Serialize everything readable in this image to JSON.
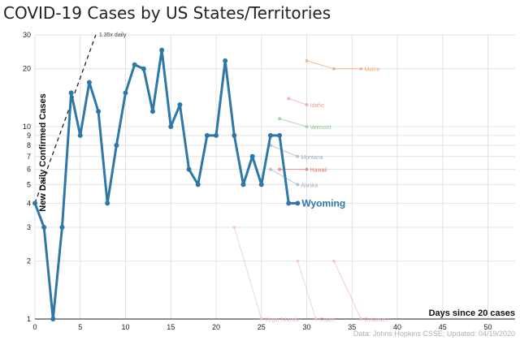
{
  "chart_data": {
    "type": "line",
    "title": "COVID-19 Cases by US States/Territories",
    "xlabel": "Days since 20 cases",
    "ylabel": "New Daily Confirmed Cases",
    "y_scale": "log",
    "xlim": [
      0,
      53
    ],
    "ylim": [
      1,
      30
    ],
    "x_ticks": [
      0,
      5,
      10,
      15,
      20,
      25,
      30,
      35,
      40,
      45,
      50
    ],
    "y_ticks": [
      1,
      2,
      3,
      4,
      5,
      6,
      7,
      8,
      9,
      10,
      20,
      30
    ],
    "grid": true,
    "trend_line": {
      "label": "1.35x daily",
      "start": [
        0,
        4
      ],
      "growth_factor": 1.35,
      "color": "#222222"
    },
    "highlight_series": {
      "name": "Wyoming",
      "color": "#2e78a8",
      "x": [
        0,
        1,
        2,
        3,
        4,
        5,
        6,
        7,
        8,
        9,
        10,
        11,
        12,
        13,
        14,
        15,
        16,
        17,
        18,
        19,
        20,
        21,
        22,
        23,
        24,
        25,
        26,
        27,
        28,
        29
      ],
      "y": [
        4,
        3,
        1,
        3,
        15,
        9,
        17,
        12,
        4,
        8,
        15,
        21,
        20,
        12,
        25,
        10,
        13,
        6,
        5,
        9,
        9,
        22,
        9,
        5,
        7,
        5,
        9,
        9,
        4,
        4
      ]
    },
    "background_series": [
      {
        "name": "Maine",
        "color": "#f0a070",
        "x": [
          30,
          33,
          36
        ],
        "y": [
          22,
          20,
          20
        ]
      },
      {
        "name": "Idaho",
        "color": "#e8a0a0",
        "x": [
          28,
          30
        ],
        "y": [
          14,
          13
        ]
      },
      {
        "name": "Vermont",
        "color": "#90c890",
        "x": [
          27,
          30
        ],
        "y": [
          11,
          10
        ]
      },
      {
        "name": "Montana",
        "color": "#a8a8c8",
        "x": [
          26,
          29
        ],
        "y": [
          8,
          7
        ]
      },
      {
        "name": "Hawaii",
        "color": "#e07070",
        "x": [
          27,
          30
        ],
        "y": [
          6,
          6
        ]
      },
      {
        "name": "Alaska",
        "color": "#a0b0c8",
        "x": [
          26,
          29
        ],
        "y": [
          6,
          5
        ]
      },
      {
        "name": "Virgin Islands",
        "color": "#f0c0c0",
        "x": [
          22,
          25
        ],
        "y": [
          3,
          1
        ]
      },
      {
        "name": "Guam",
        "color": "#f0c0c0",
        "x": [
          29,
          31
        ],
        "y": [
          2,
          1
        ]
      },
      {
        "name": "Delaware",
        "color": "#f0b8b8",
        "x": [
          33,
          36
        ],
        "y": [
          2,
          1
        ]
      }
    ],
    "source": "Data: Johns Hopkins CSSE; Updated: 04/19/2020"
  }
}
